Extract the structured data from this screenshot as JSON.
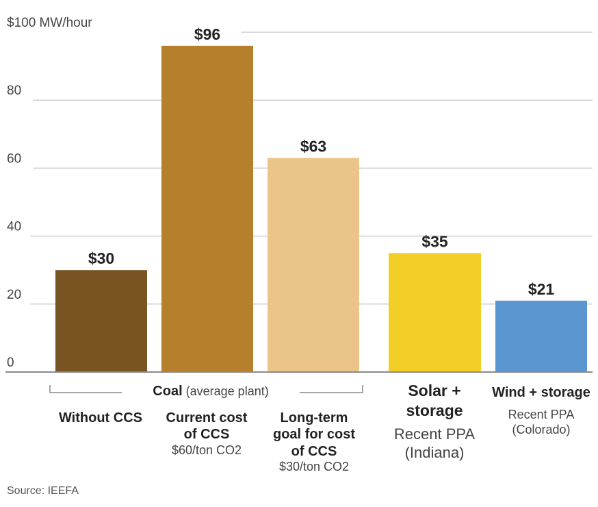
{
  "chart_data": {
    "type": "bar",
    "ylim": [
      0,
      100
    ],
    "yticks": [
      {
        "value": 0,
        "label": "0"
      },
      {
        "value": 20,
        "label": "20"
      },
      {
        "value": 40,
        "label": "40"
      },
      {
        "value": 60,
        "label": "60"
      },
      {
        "value": 80,
        "label": "80"
      },
      {
        "value": 100,
        "label": "$100 MW/hour"
      }
    ],
    "grid": true,
    "bars": [
      {
        "value": 30,
        "value_label": "$30",
        "color": "#7a5323",
        "label_bold": "Without CCS",
        "label_sub": ""
      },
      {
        "value": 96,
        "value_label": "$96",
        "color": "#b57f2c",
        "label_bold": "Current cost of CCS",
        "label_sub": "$60/ton CO2"
      },
      {
        "value": 63,
        "value_label": "$63",
        "color": "#ebc48a",
        "label_bold": "Long-term goal for cost of CCS",
        "label_sub": "$30/ton CO2"
      },
      {
        "value": 35,
        "value_label": "$35",
        "color": "#f1cf27",
        "label_bold": "Solar + storage",
        "label_sub": "Recent PPA (Indiana)"
      },
      {
        "value": 21,
        "value_label": "$21",
        "color": "#5a97d1",
        "label_bold": "Wind + storage",
        "label_sub": "Recent PPA (Colorado)"
      }
    ],
    "group": {
      "bold": "Coal",
      "normal": "(average plant)"
    },
    "source": "Source:  IEEFA"
  }
}
